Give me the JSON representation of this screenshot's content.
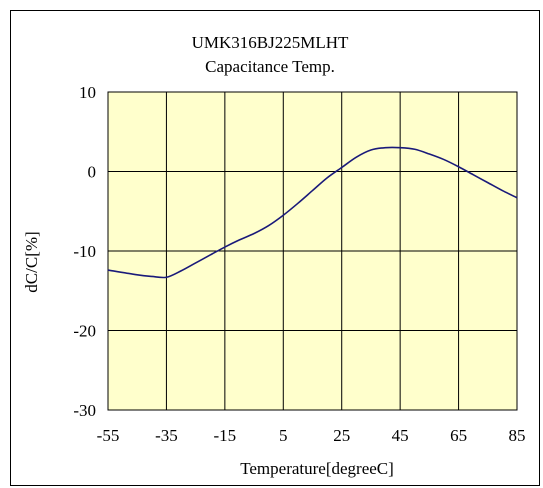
{
  "chart_data": {
    "type": "line",
    "title": "UMK316BJ225MLHT",
    "subtitle": "Capacitance Temp.",
    "xlabel": "Temperature[degreeC]",
    "ylabel": "dC/C[%]",
    "xlim": [
      -55,
      85
    ],
    "ylim": [
      -30,
      10
    ],
    "x_ticks": [
      "-55",
      "-35",
      "-15",
      "5",
      "25",
      "45",
      "65",
      "85"
    ],
    "y_ticks": [
      "10",
      "0",
      "-10",
      "-20",
      "-30"
    ],
    "grid": true,
    "series": [
      {
        "color": "#1a1a7a",
        "x": [
          -55,
          -45,
          -40,
          -35,
          -30,
          -25,
          -20,
          -15,
          -10,
          -5,
          0,
          5,
          10,
          15,
          20,
          25,
          30,
          35,
          40,
          45,
          50,
          55,
          60,
          65,
          70,
          75,
          80,
          85
        ],
        "y": [
          -12.4,
          -13.0,
          -13.2,
          -13.3,
          -12.5,
          -11.5,
          -10.5,
          -9.5,
          -8.6,
          -7.8,
          -6.8,
          -5.5,
          -4.0,
          -2.4,
          -0.8,
          0.5,
          1.8,
          2.7,
          3.0,
          3.0,
          2.8,
          2.2,
          1.5,
          0.6,
          -0.4,
          -1.4,
          -2.4,
          -3.3
        ]
      }
    ],
    "colors": {
      "plot_background": "#ffffcc",
      "line": "#1a1a7a"
    }
  }
}
